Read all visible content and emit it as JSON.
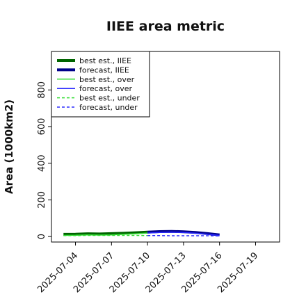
{
  "chart_data": {
    "type": "line",
    "title": "IIEE area metric",
    "ylabel": "Area (1000km2)",
    "xlabel": "",
    "ylim": [
      -30,
      1010
    ],
    "xlim": [
      "2025-07-02",
      "2025-07-21"
    ],
    "yticks": [
      0,
      200,
      400,
      600,
      800
    ],
    "xticks": [
      "2025-07-04",
      "2025-07-07",
      "2025-07-10",
      "2025-07-13",
      "2025-07-16",
      "2025-07-19"
    ],
    "highlight_tick": "2025-07-10",
    "highlight_color": "#2e8b2e",
    "grid": false,
    "legend_position": "upper-left",
    "series": [
      {
        "name": "best est., IIEE",
        "color": "#006400",
        "style": "solid",
        "weight": "thick",
        "x": [
          "2025-07-03",
          "2025-07-04",
          "2025-07-05",
          "2025-07-06",
          "2025-07-07",
          "2025-07-08",
          "2025-07-09",
          "2025-07-10"
        ],
        "y": [
          12,
          13,
          15,
          14,
          16,
          18,
          21,
          24
        ]
      },
      {
        "name": "forecast, IIEE",
        "color": "#00008b",
        "style": "solid",
        "weight": "thick",
        "x": [
          "2025-07-10",
          "2025-07-11",
          "2025-07-12",
          "2025-07-13",
          "2025-07-14",
          "2025-07-15",
          "2025-07-16"
        ],
        "y": [
          24,
          27,
          28,
          26,
          22,
          16,
          9
        ]
      },
      {
        "name": "best est., over",
        "color": "#33dd33",
        "style": "solid",
        "weight": "thin",
        "x": [
          "2025-07-03",
          "2025-07-04",
          "2025-07-05",
          "2025-07-06",
          "2025-07-07",
          "2025-07-08",
          "2025-07-09",
          "2025-07-10"
        ],
        "y": [
          6,
          7,
          9,
          8,
          9,
          12,
          15,
          19
        ]
      },
      {
        "name": "forecast, over",
        "color": "#2a2aff",
        "style": "solid",
        "weight": "thin",
        "x": [
          "2025-07-10",
          "2025-07-11",
          "2025-07-12",
          "2025-07-13",
          "2025-07-14",
          "2025-07-15",
          "2025-07-16"
        ],
        "y": [
          19,
          22,
          24,
          22,
          18,
          12,
          6
        ]
      },
      {
        "name": "best est., under",
        "color": "#33dd33",
        "style": "dashed",
        "weight": "thin",
        "x": [
          "2025-07-03",
          "2025-07-04",
          "2025-07-05",
          "2025-07-06",
          "2025-07-07",
          "2025-07-08",
          "2025-07-09",
          "2025-07-10"
        ],
        "y": [
          5,
          5,
          6,
          6,
          6,
          6,
          6,
          5
        ]
      },
      {
        "name": "forecast, under",
        "color": "#2a2aff",
        "style": "dashed",
        "weight": "thin",
        "x": [
          "2025-07-10",
          "2025-07-11",
          "2025-07-12",
          "2025-07-13",
          "2025-07-14",
          "2025-07-15",
          "2025-07-16"
        ],
        "y": [
          5,
          5,
          4,
          4,
          4,
          4,
          3
        ]
      }
    ]
  }
}
